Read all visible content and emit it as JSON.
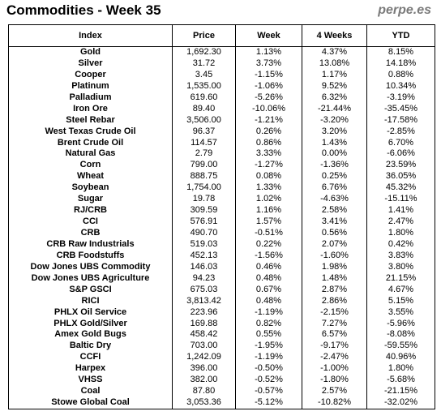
{
  "title": "Commodities - Week 35",
  "brand": "perpe.es",
  "columns": [
    "Index",
    "Price",
    "Week",
    "4 Weeks",
    "YTD"
  ],
  "colors": {
    "positive": "#1a9a1a",
    "negative": "#e01010"
  },
  "rows": [
    {
      "index": "Gold",
      "price": "1,692.30",
      "week": "1.13%",
      "w4": "4.37%",
      "ytd": "8.15%"
    },
    {
      "index": "Silver",
      "price": "31.72",
      "week": "3.73%",
      "w4": "13.08%",
      "ytd": "14.18%"
    },
    {
      "index": "Cooper",
      "price": "3.45",
      "week": "-1.15%",
      "w4": "1.17%",
      "ytd": "0.88%"
    },
    {
      "index": "Platinum",
      "price": "1,535.00",
      "week": "-1.06%",
      "w4": "9.52%",
      "ytd": "10.34%"
    },
    {
      "index": "Palladium",
      "price": "619.60",
      "week": "-5.26%",
      "w4": "6.32%",
      "ytd": "-3.19%"
    },
    {
      "index": "Iron Ore",
      "price": "89.40",
      "week": "-10.06%",
      "w4": "-21.44%",
      "ytd": "-35.45%"
    },
    {
      "index": "Steel Rebar",
      "price": "3,506.00",
      "week": "-1.21%",
      "w4": "-3.20%",
      "ytd": "-17.58%"
    },
    {
      "index": "West Texas Crude Oil",
      "price": "96.37",
      "week": "0.26%",
      "w4": "3.20%",
      "ytd": "-2.85%"
    },
    {
      "index": "Brent Crude Oil",
      "price": "114.57",
      "week": "0.86%",
      "w4": "1.43%",
      "ytd": "6.70%"
    },
    {
      "index": "Natural Gas",
      "price": "2.79",
      "week": "3.33%",
      "w4": "0.00%",
      "ytd": "-6.06%"
    },
    {
      "index": "Corn",
      "price": "799.00",
      "week": "-1.27%",
      "w4": "-1.36%",
      "ytd": "23.59%"
    },
    {
      "index": "Wheat",
      "price": "888.75",
      "week": "0.08%",
      "w4": "0.25%",
      "ytd": "36.05%"
    },
    {
      "index": "Soybean",
      "price": "1,754.00",
      "week": "1.33%",
      "w4": "6.76%",
      "ytd": "45.32%"
    },
    {
      "index": "Sugar",
      "price": "19.78",
      "week": "1.02%",
      "w4": "-4.63%",
      "ytd": "-15.11%"
    },
    {
      "index": "RJ/CRB",
      "price": "309.59",
      "week": "1.16%",
      "w4": "2.58%",
      "ytd": "1.41%"
    },
    {
      "index": "CCI",
      "price": "576.91",
      "week": "1.57%",
      "w4": "3.41%",
      "ytd": "2.47%"
    },
    {
      "index": "CRB",
      "price": "490.70",
      "week": "-0.51%",
      "w4": "0.56%",
      "ytd": "1.80%"
    },
    {
      "index": "CRB Raw Industrials",
      "price": "519.03",
      "week": "0.22%",
      "w4": "2.07%",
      "ytd": "0.42%"
    },
    {
      "index": "CRB Foodstuffs",
      "price": "452.13",
      "week": "-1.56%",
      "w4": "-1.60%",
      "ytd": "3.83%"
    },
    {
      "index": "Dow Jones UBS Commodity",
      "price": "146.03",
      "week": "0.46%",
      "w4": "1.98%",
      "ytd": "3.80%"
    },
    {
      "index": "Dow Jones UBS Agriculture",
      "price": "94.23",
      "week": "0.48%",
      "w4": "1.48%",
      "ytd": "21.15%"
    },
    {
      "index": "S&P GSCI",
      "price": "675.03",
      "week": "0.67%",
      "w4": "2.87%",
      "ytd": "4.67%"
    },
    {
      "index": "RICI",
      "price": "3,813.42",
      "week": "0.48%",
      "w4": "2.86%",
      "ytd": "5.15%"
    },
    {
      "index": "PHLX Oil Service",
      "price": "223.96",
      "week": "-1.19%",
      "w4": "-2.15%",
      "ytd": "3.55%"
    },
    {
      "index": "PHLX Gold/Silver",
      "price": "169.88",
      "week": "0.82%",
      "w4": "7.27%",
      "ytd": "-5.96%"
    },
    {
      "index": "Amex Gold Bugs",
      "price": "458.42",
      "week": "0.55%",
      "w4": "6.57%",
      "ytd": "-8.08%"
    },
    {
      "index": "Baltic Dry",
      "price": "703.00",
      "week": "-1.95%",
      "w4": "-9.17%",
      "ytd": "-59.55%"
    },
    {
      "index": "CCFI",
      "price": "1,242.09",
      "week": "-1.19%",
      "w4": "-2.47%",
      "ytd": "40.96%"
    },
    {
      "index": "Harpex",
      "price": "396.00",
      "week": "-0.50%",
      "w4": "-1.00%",
      "ytd": "1.80%"
    },
    {
      "index": "VHSS",
      "price": "382.00",
      "week": "-0.52%",
      "w4": "-1.80%",
      "ytd": "-5.68%"
    },
    {
      "index": "Coal",
      "price": "87.80",
      "week": "-0.57%",
      "w4": "2.57%",
      "ytd": "-21.15%"
    },
    {
      "index": "Stowe Global Coal",
      "price": "3,053.36",
      "week": "-5.12%",
      "w4": "-10.82%",
      "ytd": "-32.02%"
    }
  ]
}
